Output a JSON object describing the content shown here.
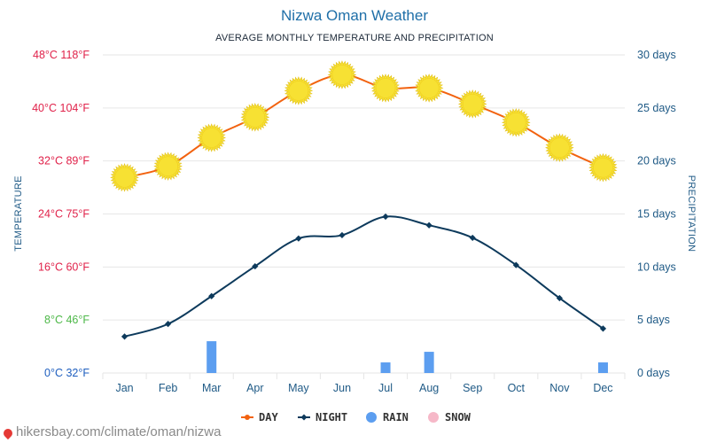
{
  "chart_data": {
    "type": "line",
    "title": "Nizwa Oman Weather",
    "subtitle": "AVERAGE MONTHLY TEMPERATURE AND PRECIPITATION",
    "ylabel_left": "TEMPERATURE",
    "ylabel_right": "PRECIPITATION",
    "categories": [
      "Jan",
      "Feb",
      "Mar",
      "Apr",
      "May",
      "Jun",
      "Jul",
      "Aug",
      "Sep",
      "Oct",
      "Nov",
      "Dec"
    ],
    "y_left_ticks": [
      {
        "value": 0,
        "label": "0°C 32°F",
        "color": "#1f5fbf"
      },
      {
        "value": 8,
        "label": "8°C 46°F",
        "color": "#4db848"
      },
      {
        "value": 16,
        "label": "16°C 60°F",
        "color": "#e0224a"
      },
      {
        "value": 24,
        "label": "24°C 75°F",
        "color": "#e0224a"
      },
      {
        "value": 32,
        "label": "32°C 89°F",
        "color": "#e0224a"
      },
      {
        "value": 40,
        "label": "40°C 104°F",
        "color": "#e0224a"
      },
      {
        "value": 48,
        "label": "48°C 118°F",
        "color": "#e0224a"
      }
    ],
    "y_right_ticks": [
      {
        "value": 0,
        "label": "0 days"
      },
      {
        "value": 5,
        "label": "5 days"
      },
      {
        "value": 10,
        "label": "10 days"
      },
      {
        "value": 15,
        "label": "15 days"
      },
      {
        "value": 20,
        "label": "20 days"
      },
      {
        "value": 25,
        "label": "25 days"
      },
      {
        "value": 30,
        "label": "30 days"
      }
    ],
    "ylim_left": [
      0,
      48
    ],
    "ylim_right": [
      0,
      30
    ],
    "grid": true,
    "legend_position": "bottom",
    "series": [
      {
        "key": "day",
        "name": "DAY",
        "type": "line",
        "axis": "left",
        "color": "#f2620f",
        "values": [
          29.5,
          31.2,
          35.5,
          38.6,
          42.6,
          45.0,
          43.0,
          43.0,
          40.6,
          37.8,
          34.0,
          31.0
        ]
      },
      {
        "key": "night",
        "name": "NIGHT",
        "type": "line",
        "axis": "left",
        "color": "#0d3a5c",
        "values": [
          5.5,
          7.4,
          11.6,
          16.1,
          20.3,
          20.8,
          23.6,
          22.3,
          20.4,
          16.3,
          11.3,
          6.7
        ]
      },
      {
        "key": "rain",
        "name": "RAIN",
        "type": "bar",
        "axis": "right",
        "color": "#5c9ef0",
        "values": [
          0,
          0,
          3,
          0,
          0,
          0,
          1,
          2,
          0,
          0,
          0,
          1
        ]
      },
      {
        "key": "snow",
        "name": "SNOW",
        "type": "bar",
        "axis": "right",
        "color": "#f6b8c8",
        "values": [
          0,
          0,
          0,
          0,
          0,
          0,
          0,
          0,
          0,
          0,
          0,
          0
        ]
      }
    ],
    "sun_color": "#f7e133",
    "night_marker": "diamond"
  },
  "watermark": {
    "text": "hikersbay.com/climate/oman/nizwa",
    "icon": "location-pin-icon",
    "icon_color": "#e53935"
  }
}
